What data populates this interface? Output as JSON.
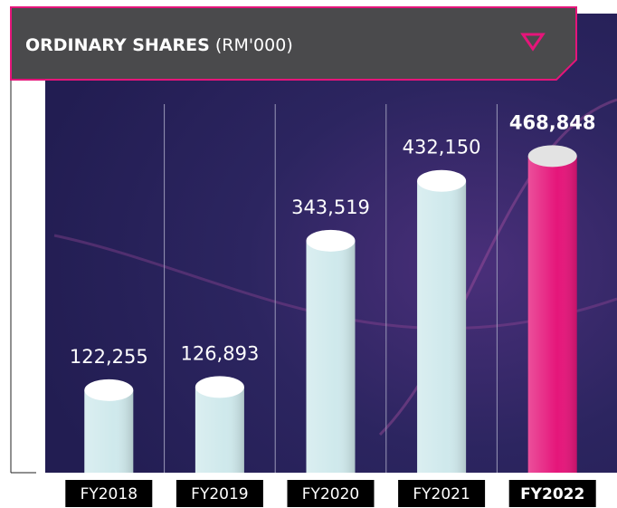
{
  "chart_data": {
    "type": "bar",
    "title": "ORDINARY SHARES",
    "subtitle": "(RM'000)",
    "categories": [
      "FY2018",
      "FY2019",
      "FY2020",
      "FY2021",
      "FY2022"
    ],
    "values": [
      122255,
      126893,
      343519,
      432150,
      468848
    ],
    "value_labels": [
      "122,255",
      "126,893",
      "343,519",
      "432,150",
      "468,848"
    ],
    "colors": [
      "#cfe9ec",
      "#cfe9ec",
      "#cfe9ec",
      "#cfe9ec",
      "#e5157a"
    ],
    "ylim": [
      0,
      700000
    ]
  }
}
